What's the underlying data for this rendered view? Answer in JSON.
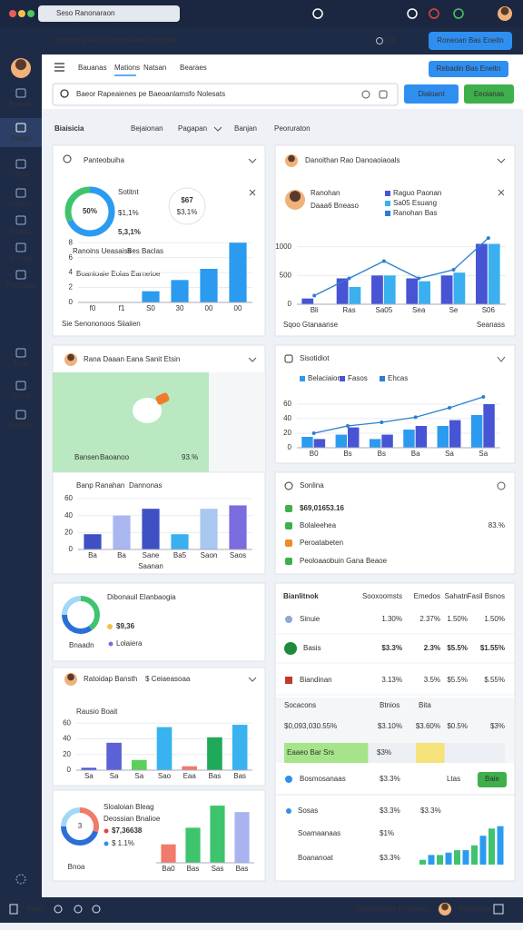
{
  "browser": {
    "address": "Seso Ranonaraon"
  },
  "header": {
    "title": "Ulconoyial  Roni Eklonoie  Nesamenbie",
    "status": "Oil",
    "button": "Roneoan Bas Eneitn"
  },
  "sidebar": {
    "items": [
      "Sosuen",
      "Dentin",
      "Oiles",
      "Canten",
      "Enaso",
      "Gonas",
      "Peocaiss",
      "Tans",
      "Ceoul",
      "Neiaste"
    ],
    "active": 1
  },
  "toolbar": {
    "tabs": [
      "Bauanas",
      "Mations",
      "Natsan",
      "Bearaes"
    ],
    "active": 1,
    "button": "Rebadin Bas Eneitn"
  },
  "search": {
    "placeholder": "Baeor Rapeaienes pe Baeoanlamsfo Nolesats",
    "buttons": [
      "Dialoant",
      "Eeoianas"
    ]
  },
  "heading": {
    "title": "Biaisicia",
    "tabs": [
      "Bejaionan",
      "Pagapan",
      "Banjan",
      "Peoruraton"
    ]
  },
  "overview": {
    "title": "Panteobuiha",
    "donut": [
      {
        "value": 68,
        "color": "#2b9bf0"
      },
      {
        "value": 32,
        "color": "#3ec46d"
      }
    ],
    "donut_label": "50%",
    "stats": [
      "Sotitnt",
      "$1,1%",
      "5,3,1%"
    ],
    "badge": [
      "$67",
      "$3,1%"
    ],
    "legend": [
      "Ranoins Ueasaiss",
      "Bes Baclas",
      "Boantoaie Eolas",
      "Earnetoe"
    ],
    "chart": {
      "categories": [
        "f0",
        "f1",
        "S0",
        "30",
        "00",
        "00"
      ],
      "values": [
        0,
        0,
        1.5,
        3,
        4.5,
        8
      ],
      "color": "#2b9bf0",
      "ylim": [
        0,
        9
      ],
      "yticks": [
        0,
        2,
        4,
        6,
        8
      ]
    },
    "footer": "Sie Senononoos Siiaiien"
  },
  "team": {
    "title": "Danoithan Rao Danoaoiaoals",
    "person": "Ranohan",
    "person_sub": "Daaa6 Bneaso",
    "chart": {
      "categories": [
        "Bli",
        "Ras",
        "Sa05",
        "Sea",
        "Se",
        "S06"
      ],
      "series": [
        {
          "name": "Raguo Paonan",
          "type": "bar",
          "color": "#4754d4",
          "values": [
            100,
            450,
            500,
            450,
            500,
            1050
          ]
        },
        {
          "name": "Sa05 Esuang",
          "type": "bar",
          "color": "#3ab0f0",
          "values": [
            0,
            300,
            500,
            400,
            550,
            1050
          ]
        },
        {
          "name": "Ranohan Bas",
          "type": "line",
          "color": "#2a7fd0",
          "values": [
            150,
            450,
            750,
            450,
            600,
            1150
          ]
        }
      ],
      "ylim": [
        0,
        1200
      ],
      "yticks": [
        0,
        500,
        1000
      ]
    },
    "footer": [
      "Sqoo Gtanaanse",
      "Seanass"
    ]
  },
  "image": {
    "title": "Rana Daaan Eana Sanit Etsin",
    "caption": [
      "Bansen",
      "Baoanoo",
      "93.%"
    ]
  },
  "comparison": {
    "title": "Banp Ranahan",
    "accent": "Dannonas",
    "chart": {
      "categories": [
        "Ba",
        "Ba",
        "Sane",
        "Ba5",
        "Saon",
        "Saos"
      ],
      "values": [
        18,
        40,
        48,
        18,
        48,
        52
      ],
      "colors": [
        "#3f4fc4",
        "#a9b6f0",
        "#3f4fc4",
        "#3ab0f0",
        "#a9c7f0",
        "#7b6ce0"
      ],
      "ylim": [
        0,
        60
      ],
      "yticks": [
        0,
        20,
        40,
        60
      ]
    },
    "footer": "Saanan"
  },
  "sales": {
    "title": "Sisotidiot",
    "chart": {
      "categories": [
        "B0",
        "Bs",
        "Bs",
        "Ba",
        "Sa",
        "Sa"
      ],
      "series": [
        {
          "name": "Belaciaion",
          "type": "bar",
          "color": "#2b9bf0",
          "values": [
            15,
            18,
            12,
            25,
            30,
            45
          ]
        },
        {
          "name": "Fasos",
          "type": "bar",
          "color": "#4754d4",
          "values": [
            12,
            28,
            18,
            30,
            38,
            60
          ]
        },
        {
          "name": "Ehcas",
          "type": "line",
          "color": "#2a7fd0",
          "values": [
            20,
            30,
            35,
            42,
            55,
            70
          ]
        }
      ],
      "ylim": [
        0,
        80
      ],
      "yticks": [
        0,
        20,
        40,
        60
      ]
    }
  },
  "list": {
    "title": "Sonlina",
    "items": [
      "$69,01653.16",
      "Bolaleehea",
      "Peroatabeten",
      "Peoloaaobuin Gana Beaoe"
    ],
    "value": "83.%"
  },
  "distribution": {
    "title": "Dibonauil Elanbaogia",
    "value": "$9,36",
    "label": "Bnaadn",
    "legend": "Lolaiera",
    "donut": [
      {
        "value": 40,
        "color": "#3ec46d"
      },
      {
        "value": 35,
        "color": "#2b6fd6"
      },
      {
        "value": 25,
        "color": "#a0d8f5"
      }
    ]
  },
  "table": {
    "title": "Bianlitnok",
    "columns": [
      "Sooxoomsts",
      "Emedos",
      "Sahatn",
      "Fasil Bsnos"
    ],
    "rows": [
      [
        "Sinuie",
        "1.30%",
        "2.37%",
        "1.50%",
        "1.50%"
      ],
      [
        "Basis",
        "$3.3%",
        "2.3%",
        "$5.5%",
        "$1.55%"
      ],
      [
        "Biandinan",
        "3.13%",
        "3.5%",
        "$5.5%",
        "$.55%"
      ]
    ],
    "columns2": [
      "Socacons",
      "Btnios",
      "Bita"
    ],
    "row2": [
      "$0,093,030.55%",
      "$3.10%",
      "$3.60%",
      "$0.5%",
      "$3%"
    ],
    "progress": {
      "label": "Eaaeo Bar Srs",
      "text": "$3%",
      "values": [
        38,
        13
      ],
      "xlim": [
        0,
        100
      ]
    },
    "row3": {
      "name": "Bosmosanaas",
      "value": "$3.3%",
      "status": "Ltas",
      "button": "Baie"
    },
    "mini": {
      "rows": [
        [
          "Sosas",
          "$3.3%",
          "$3.3%"
        ],
        [
          "Soamaanaas",
          "$1%"
        ],
        [
          "Boananoat",
          "$3.3%"
        ]
      ],
      "values": [
        1,
        2,
        2,
        2.5,
        3,
        3,
        4,
        6,
        7.5,
        8
      ],
      "colors": [
        "#3ec46d",
        "#2b9bf0"
      ],
      "ylim": [
        0,
        8.5
      ]
    }
  },
  "growth": {
    "title": "Ratoidap Bansth",
    "accent": "$ Ceiaeasoaa",
    "subtitle": "Rausio Boait",
    "chart": {
      "categories": [
        "Sa",
        "Sa",
        "Sa",
        "Sao",
        "Eaa",
        "Bas",
        "Bas"
      ],
      "values": [
        3,
        35,
        13,
        55,
        5,
        42,
        58
      ],
      "colors": [
        "#4754d4",
        "#5b62d6",
        "#5ccf5a",
        "#38b3ef",
        "#f07b6a",
        "#1faa5a",
        "#38b3ef"
      ],
      "ylim": [
        0,
        65
      ],
      "yticks": [
        0,
        20,
        40,
        60
      ]
    }
  },
  "summary": {
    "title": "Sloaloian Bleag",
    "subtitle": "Deossian Bnalioe",
    "value": "$7,36638",
    "sub": "$ 1.1%",
    "center": "3",
    "donut": [
      {
        "value": 30,
        "color": "#f07b6a"
      },
      {
        "value": 45,
        "color": "#2b6fd6"
      },
      {
        "value": 25,
        "color": "#a0d8f5"
      }
    ],
    "chart": {
      "categories": [
        "Ba0",
        "Bas",
        "Sas",
        "Bas"
      ],
      "values": [
        20,
        38,
        62,
        55
      ],
      "colors": [
        "#f07b6a",
        "#3ec46d",
        "#3ec46d",
        "#aab3f0"
      ],
      "ylim": [
        0,
        65
      ]
    },
    "footer": "Bnoa"
  },
  "bottom": {
    "left": "Beas",
    "center": "Boaialeaaba Bnieeaas",
    "right": "Boldeiaos"
  }
}
